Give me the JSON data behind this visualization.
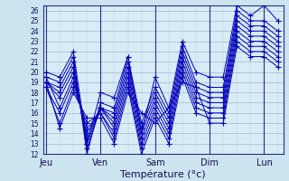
{
  "xlabel": "Température (°c)",
  "bg_color": "#cce4f0",
  "plot_bg": "#d8ecf8",
  "line_color": "#0000bb",
  "grid_major_color": "#a0b8cc",
  "grid_minor_color": "#b8ccd8",
  "ylim": [
    12,
    26
  ],
  "yticks": [
    12,
    13,
    14,
    15,
    16,
    17,
    18,
    19,
    20,
    21,
    22,
    23,
    24,
    25,
    26
  ],
  "day_labels": [
    "Jeu",
    "Ven",
    "Sam",
    "Dim",
    "Lun"
  ],
  "day_x": [
    0,
    1,
    2,
    3,
    4
  ],
  "series": [
    {
      "x": [
        0.0,
        0.25,
        0.5,
        0.75,
        1.0,
        1.25,
        1.5,
        1.75,
        2.0,
        2.25,
        2.5,
        2.75,
        3.0,
        3.25,
        3.5,
        3.75,
        4.0,
        4.25
      ],
      "y": [
        19.5,
        19.0,
        21.5,
        12.0,
        17.0,
        16.5,
        21.5,
        15.0,
        18.5,
        16.0,
        22.5,
        19.0,
        18.5,
        18.5,
        26.0,
        25.0,
        25.0,
        24.0
      ]
    },
    {
      "x": [
        0.0,
        0.25,
        0.5,
        0.75,
        1.0,
        1.25,
        1.5,
        1.75,
        2.0,
        2.25,
        2.5,
        2.75,
        3.0,
        3.25,
        3.5,
        3.75,
        4.0,
        4.25
      ],
      "y": [
        19.0,
        18.5,
        21.0,
        12.5,
        16.5,
        16.0,
        21.0,
        14.5,
        18.0,
        15.5,
        22.0,
        18.5,
        18.0,
        18.0,
        25.5,
        24.5,
        24.5,
        23.5
      ]
    },
    {
      "x": [
        0.0,
        0.25,
        0.5,
        0.75,
        1.0,
        1.25,
        1.5,
        1.75,
        2.0,
        2.25,
        2.5,
        2.75,
        3.0,
        3.25,
        3.5,
        3.75,
        4.0,
        4.25
      ],
      "y": [
        19.0,
        18.0,
        20.5,
        13.0,
        16.5,
        15.5,
        20.5,
        14.0,
        17.5,
        15.0,
        21.5,
        18.0,
        17.5,
        17.5,
        25.0,
        24.0,
        24.0,
        23.0
      ]
    },
    {
      "x": [
        0.0,
        0.25,
        0.5,
        0.75,
        1.0,
        1.25,
        1.5,
        1.75,
        2.0,
        2.25,
        2.5,
        2.75,
        3.0,
        3.25,
        3.5,
        3.75,
        4.0,
        4.25
      ],
      "y": [
        19.0,
        17.5,
        20.0,
        13.5,
        16.5,
        15.0,
        20.0,
        13.5,
        17.0,
        14.5,
        21.0,
        17.5,
        17.0,
        17.0,
        24.5,
        23.5,
        23.5,
        22.5
      ]
    },
    {
      "x": [
        0.0,
        0.25,
        0.5,
        0.75,
        1.0,
        1.25,
        1.5,
        1.75,
        2.0,
        2.25,
        2.5,
        2.75,
        3.0,
        3.25,
        3.5,
        3.75,
        4.0,
        4.25
      ],
      "y": [
        19.5,
        16.5,
        19.5,
        14.0,
        16.5,
        14.5,
        19.5,
        13.0,
        16.5,
        14.0,
        20.5,
        17.0,
        16.5,
        16.5,
        24.0,
        23.0,
        23.0,
        22.0
      ]
    },
    {
      "x": [
        0.0,
        0.25,
        0.5,
        0.75,
        1.0,
        1.25,
        1.5,
        1.75,
        2.0,
        2.25,
        2.5,
        2.75,
        3.0,
        3.25,
        3.5,
        3.75,
        4.0,
        4.25
      ],
      "y": [
        18.5,
        16.0,
        19.0,
        14.5,
        16.0,
        14.0,
        19.0,
        12.5,
        16.0,
        13.5,
        20.0,
        16.5,
        16.0,
        16.0,
        23.5,
        22.5,
        22.5,
        21.5
      ]
    },
    {
      "x": [
        0.0,
        0.25,
        0.5,
        0.75,
        1.0,
        1.25,
        1.5,
        1.75,
        2.0,
        2.25,
        2.5,
        2.75,
        3.0,
        3.25,
        3.5,
        3.75,
        4.0,
        4.25
      ],
      "y": [
        18.5,
        15.0,
        18.5,
        15.0,
        16.0,
        13.5,
        18.5,
        12.0,
        15.5,
        13.0,
        19.5,
        16.0,
        15.5,
        15.5,
        23.0,
        22.0,
        22.0,
        21.0
      ]
    },
    {
      "x": [
        0.0,
        0.25,
        0.5,
        0.75,
        1.0,
        1.25,
        1.5,
        1.75,
        2.0,
        2.25,
        2.5,
        2.75,
        3.0,
        3.25,
        3.5,
        3.75,
        4.0,
        4.25
      ],
      "y": [
        19.0,
        14.5,
        18.0,
        15.5,
        15.5,
        13.0,
        18.0,
        16.0,
        15.0,
        16.5,
        19.0,
        18.5,
        15.0,
        15.0,
        22.5,
        21.5,
        21.5,
        20.5
      ]
    },
    {
      "x": [
        0.0,
        0.25,
        0.5,
        0.75,
        1.0,
        1.25,
        1.5,
        1.75,
        2.0,
        2.25,
        2.5,
        2.75,
        3.0,
        3.25,
        3.5,
        3.75,
        4.0,
        4.25
      ],
      "y": [
        20.0,
        19.5,
        22.0,
        13.0,
        18.0,
        17.5,
        21.5,
        14.0,
        19.5,
        16.5,
        23.0,
        20.0,
        19.5,
        19.5,
        26.5,
        25.5,
        26.5,
        25.0
      ]
    }
  ]
}
